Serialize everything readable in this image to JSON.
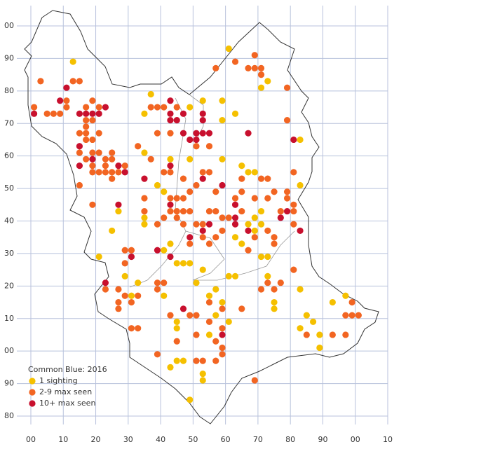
{
  "chart_data": {
    "type": "scatter",
    "title": "Common Blue:  2016",
    "xlim": [
      0,
      110
    ],
    "ylim": [
      -20,
      100
    ],
    "xticks": [
      {
        "value": 0,
        "label": "00"
      },
      10,
      20,
      30,
      40,
      50,
      60,
      70,
      80,
      90,
      {
        "value": 100,
        "label": "00"
      },
      {
        "value": 110,
        "label": "10"
      }
    ],
    "yticks": [
      {
        "value": -20,
        "label": "80"
      },
      {
        "value": -10,
        "label": "90"
      },
      {
        "value": 0,
        "label": "00"
      },
      10,
      20,
      30,
      40,
      50,
      60,
      70,
      80,
      90,
      {
        "value": 100,
        "label": "00"
      }
    ],
    "grid": true,
    "legend": "lower left",
    "series": [
      {
        "name": "1 sighting",
        "color": "#f5c000",
        "x": [
          13,
          37,
          61,
          73,
          71,
          59,
          35,
          59,
          63,
          53,
          49,
          43,
          49,
          59,
          65,
          67,
          69,
          35,
          39,
          41,
          27,
          25,
          35,
          35,
          67,
          71,
          69,
          63,
          65,
          43,
          41,
          45,
          47,
          49,
          53,
          21,
          29,
          33,
          31,
          41,
          51,
          61,
          63,
          71,
          73,
          73,
          75,
          75,
          83,
          93,
          97,
          85,
          87,
          83,
          89,
          89,
          45,
          45,
          43,
          45,
          47,
          53,
          53,
          49,
          55,
          57,
          55,
          61,
          57,
          59,
          83,
          83,
          71,
          69
        ],
        "values": [
          89,
          79,
          93,
          83,
          81,
          77,
          73,
          71,
          73,
          77,
          75,
          59,
          59,
          59,
          57,
          55,
          55,
          61,
          51,
          49,
          43,
          37,
          41,
          39,
          39,
          39,
          37,
          35,
          33,
          33,
          31,
          27,
          27,
          27,
          25,
          29,
          23,
          21,
          17,
          17,
          21,
          23,
          23,
          29,
          29,
          23,
          15,
          13,
          19,
          15,
          17,
          11,
          9,
          7,
          5,
          1,
          9,
          7,
          -5,
          -3,
          -3,
          -7,
          -9,
          -15,
          17,
          19,
          5,
          9,
          11,
          15,
          65,
          51,
          43,
          41
        ]
      },
      {
        "name": "2-9 max seen",
        "color": "#f26522",
        "x": [
          3,
          1,
          5,
          7,
          9,
          11,
          11,
          13,
          15,
          19,
          17,
          21,
          17,
          19,
          17,
          15,
          17,
          21,
          17,
          19,
          15,
          19,
          21,
          25,
          17,
          23,
          19,
          23,
          25,
          19,
          21,
          23,
          25,
          27,
          29,
          25,
          15,
          19,
          33,
          37,
          39,
          43,
          37,
          39,
          41,
          45,
          41,
          43,
          47,
          49,
          43,
          45,
          47,
          35,
          35,
          43,
          45,
          47,
          49,
          41,
          45,
          47,
          53,
          55,
          57,
          59,
          61,
          65,
          69,
          73,
          75,
          79,
          79,
          81,
          81,
          77,
          81,
          73,
          75,
          75,
          69,
          67,
          59,
          57,
          55,
          53,
          51,
          49,
          39,
          29,
          31,
          29,
          33,
          31,
          27,
          29,
          27,
          23,
          27,
          33,
          31,
          39,
          41,
          39,
          43,
          49,
          51,
          55,
          59,
          55,
          59,
          51,
          57,
          59,
          57,
          59,
          51,
          53,
          45,
          39,
          69,
          65,
          71,
          73,
          75,
          77,
          81,
          97,
          99,
          99,
          101,
          97,
          93,
          85,
          63,
          67,
          69,
          71,
          71,
          69,
          57,
          79,
          81,
          79,
          65,
          71,
          73,
          51,
          55,
          53,
          55,
          51,
          57,
          65,
          63
        ],
        "values": [
          83,
          75,
          73,
          73,
          73,
          75,
          77,
          83,
          83,
          77,
          75,
          75,
          71,
          71,
          69,
          67,
          67,
          67,
          65,
          65,
          61,
          61,
          61,
          61,
          59,
          59,
          57,
          57,
          59,
          55,
          55,
          55,
          55,
          55,
          57,
          53,
          51,
          45,
          63,
          59,
          67,
          67,
          75,
          75,
          75,
          75,
          55,
          55,
          53,
          49,
          47,
          47,
          47,
          47,
          43,
          43,
          43,
          43,
          43,
          41,
          41,
          39,
          39,
          43,
          43,
          41,
          41,
          43,
          47,
          47,
          49,
          49,
          47,
          45,
          43,
          43,
          39,
          37,
          35,
          33,
          35,
          31,
          37,
          35,
          33,
          35,
          39,
          33,
          39,
          31,
          31,
          27,
          17,
          15,
          15,
          17,
          19,
          19,
          13,
          7,
          7,
          21,
          21,
          19,
          11,
          11,
          11,
          15,
          13,
          9,
          7,
          5,
          3,
          1,
          -3,
          -1,
          -3,
          -3,
          3,
          -1,
          -9,
          13,
          19,
          21,
          19,
          21,
          25,
          11,
          15,
          11,
          11,
          5,
          5,
          5,
          89,
          87,
          87,
          87,
          85,
          91,
          87,
          81,
          55,
          71,
          53,
          53,
          53,
          63,
          63,
          55,
          55,
          51,
          49,
          49,
          47
        ]
      },
      {
        "name": "10+ max seen",
        "color": "#c8102e",
        "x": [
          11,
          9,
          1,
          15,
          17,
          19,
          21,
          23,
          15,
          15,
          19,
          27,
          27,
          29,
          35,
          43,
          43,
          43,
          45,
          47,
          47,
          49,
          51,
          51,
          53,
          55,
          53,
          53,
          43,
          43,
          53,
          59,
          63,
          63,
          63,
          67,
          55,
          49,
          53,
          79,
          77,
          83,
          81,
          67,
          39,
          43,
          31,
          23,
          47,
          59
        ],
        "values": [
          81,
          77,
          73,
          73,
          73,
          73,
          73,
          75,
          63,
          57,
          59,
          57,
          45,
          55,
          53,
          77,
          73,
          71,
          71,
          67,
          73,
          65,
          65,
          67,
          67,
          67,
          71,
          73,
          57,
          45,
          53,
          51,
          45,
          41,
          39,
          37,
          39,
          35,
          37,
          43,
          41,
          37,
          65,
          67,
          31,
          29,
          29,
          21,
          13,
          5
        ]
      }
    ]
  }
}
